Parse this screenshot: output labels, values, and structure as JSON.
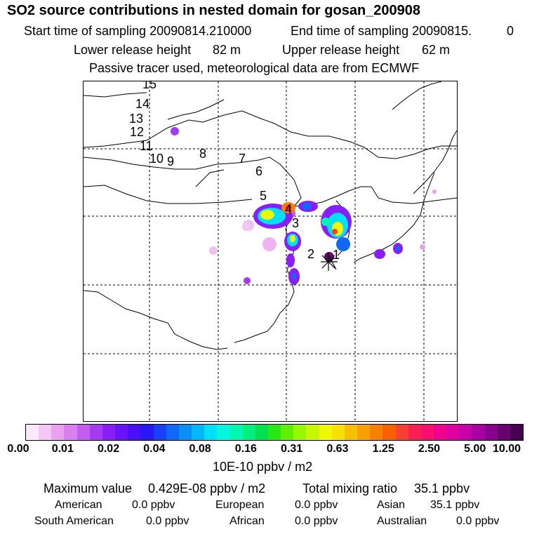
{
  "header": {
    "title": "SO2 source contributions in nested domain for gosan_200908",
    "start_label": "Start time of sampling 20090814.210000",
    "end_label": "End time of sampling 20090815.",
    "end_value": "0",
    "lower_label": "Lower release height",
    "lower_value": "82 m",
    "upper_label": "Upper release height",
    "upper_value": "62 m",
    "tracer_note": "Passive tracer used, meteorological data are from ECMWF"
  },
  "map": {
    "trajectory_labels": [
      "1",
      "2",
      "3",
      "4",
      "5",
      "6",
      "7",
      "8",
      "9",
      "10",
      "11",
      "12",
      "13",
      "14",
      "15"
    ],
    "receptor_marker": "asterisk"
  },
  "colorbar": {
    "tick_labels": [
      "0.00",
      "0.01",
      "0.02",
      "0.04",
      "0.08",
      "0.16",
      "0.31",
      "0.63",
      "1.25",
      "2.50",
      "5.00",
      "10.00"
    ],
    "unit": "10E-10 ppbv / m2",
    "colors": [
      "#fbe8fb",
      "#f4c6f4",
      "#eaa0ee",
      "#d97ff0",
      "#c45cf2",
      "#a43af2",
      "#8a1ef8",
      "#6a12f8",
      "#4a10f6",
      "#2818f4",
      "#1840f8",
      "#1068f8",
      "#0890f8",
      "#00b8f8",
      "#00e0f8",
      "#00f8e0",
      "#00f8b0",
      "#00f080",
      "#00e050",
      "#28e818",
      "#60f000",
      "#98f800",
      "#c8f800",
      "#f0f800",
      "#f8e000",
      "#f8c000",
      "#f8a000",
      "#f88000",
      "#f86000",
      "#f84030",
      "#f82050",
      "#f81070",
      "#f00090",
      "#e000a0",
      "#c800a8",
      "#a800a0",
      "#880090",
      "#680070",
      "#480050"
    ]
  },
  "summary": {
    "max_label": "Maximum value",
    "max_value": "0.429E-08 ppbv / m2",
    "total_label": "Total mixing ratio",
    "total_value": "35.1 ppbv",
    "regions": [
      {
        "name": "American",
        "value": "0.0 ppbv"
      },
      {
        "name": "European",
        "value": "0.0 ppbv"
      },
      {
        "name": "Asian",
        "value": "35.1 ppbv"
      },
      {
        "name": "South American",
        "value": "0.0 ppbv"
      },
      {
        "name": "African",
        "value": "0.0 ppbv"
      },
      {
        "name": "Australian",
        "value": "0.0 ppbv"
      }
    ]
  }
}
